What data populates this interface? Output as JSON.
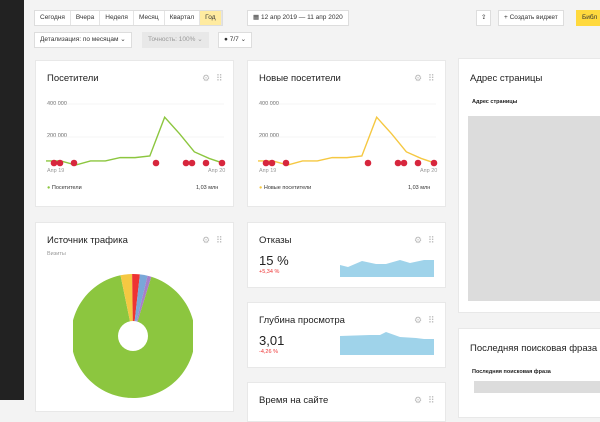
{
  "toolbar": {
    "periods": [
      "Сегодня",
      "Вчера",
      "Неделя",
      "Месяц",
      "Квартал",
      "Год"
    ],
    "active_period": "Год",
    "date_range": "12 апр 2019 — 11 апр 2020",
    "create_widget": "+ Создать виджет",
    "library": "Библ",
    "detail": "Детализация: по месяцам",
    "accuracy": "Точность: 100%",
    "segments": "7/7"
  },
  "visitors": {
    "title": "Посетители",
    "y_ticks": [
      "400 000",
      "200 000"
    ],
    "x_start": "Апр 19",
    "x_end": "Апр 20",
    "legend": "Посетители",
    "total": "1,03 млн",
    "color": "#8cc63f"
  },
  "new_visitors": {
    "title": "Новые посетители",
    "y_ticks": [
      "400 000",
      "200 000"
    ],
    "x_start": "Апр 19",
    "x_end": "Апр 20",
    "legend": "Новые посетители",
    "total": "1,03 млн",
    "color": "#f5c842"
  },
  "chart_data": [
    {
      "type": "line",
      "title": "Посетители",
      "ylim": [
        0,
        400000
      ],
      "values": [
        55000,
        55000,
        30000,
        55000,
        55000,
        75000,
        75000,
        85000,
        320000,
        220000,
        110000,
        70000,
        40000
      ]
    },
    {
      "type": "line",
      "title": "Новые посетители",
      "ylim": [
        0,
        400000
      ],
      "values": [
        55000,
        55000,
        30000,
        55000,
        55000,
        75000,
        75000,
        85000,
        320000,
        220000,
        110000,
        70000,
        40000
      ]
    },
    {
      "type": "pie",
      "title": "Источник трафика",
      "values": [
        92,
        3,
        2,
        2,
        1
      ],
      "colors": [
        "#8cc63f",
        "#f5c842",
        "#e33",
        "#7aa7d8",
        "#a87fc8"
      ]
    }
  ],
  "traffic": {
    "title": "Источник трафика",
    "subtitle": "Визиты"
  },
  "bounce": {
    "title": "Отказы",
    "value": "15 %",
    "delta": "+5,34 %"
  },
  "depth": {
    "title": "Глубина просмотра",
    "value": "3,01",
    "delta": "-4,26 %"
  },
  "time": {
    "title": "Время на сайте"
  },
  "address": {
    "title": "Адрес страницы",
    "column": "Адрес страницы"
  },
  "search": {
    "title": "Последняя поисковая фраза",
    "column": "Последняя поисковая фраза"
  }
}
